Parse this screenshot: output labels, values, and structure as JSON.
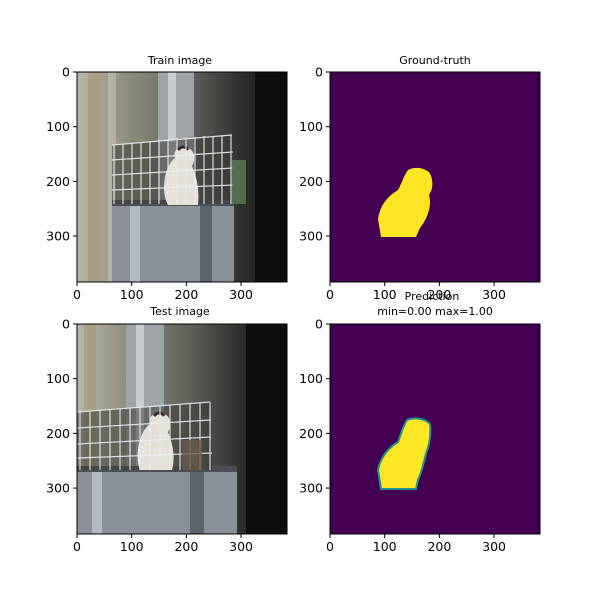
{
  "colors": {
    "mask_background": "#440154",
    "mask_foreground": "#fde725",
    "mask_edge": "#21918c",
    "photo_wall": "#6f6e68",
    "photo_pillar": "#a7a9ad",
    "photo_cage_base": "#8a9098",
    "photo_cage_wire": "#e8ecef"
  },
  "panels": {
    "train": {
      "title": "Train image"
    },
    "gt": {
      "title": "Ground-truth"
    },
    "test": {
      "title": "Test image"
    },
    "pred": {
      "title_line1": "Prediction",
      "title_line2": "min=0.00 max=1.00"
    }
  },
  "axis": {
    "range": [
      0,
      384
    ],
    "ticks": [
      "0",
      "100",
      "200",
      "300"
    ]
  }
}
